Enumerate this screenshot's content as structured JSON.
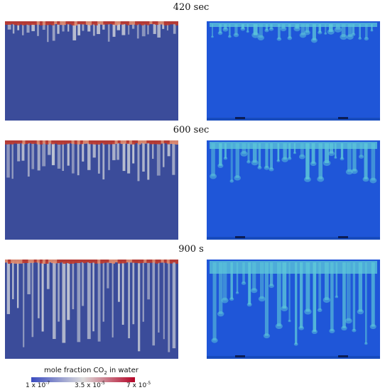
{
  "stages": [
    {
      "label": "420 sec",
      "level": 0.15
    },
    {
      "label": "600 sec",
      "level": 0.35
    },
    {
      "label": "900 s",
      "level": 0.75
    }
  ],
  "colorbar": {
    "title_main": "mole fraction CO",
    "title_sub": "2",
    "title_end": " in water",
    "ticks": [
      {
        "mant": "1 x 10",
        "exp": "-7"
      },
      {
        "mant": "3.5 x 10",
        "exp": "-5"
      },
      {
        "mant": "7 x 10",
        "exp": "-5"
      }
    ],
    "colors": [
      "#3b4cc0",
      "#dddcdc",
      "#b40426"
    ]
  },
  "sim_colors": {
    "background": "#3b4c9a",
    "finger": "#c8ccd6",
    "top": "#c0392b"
  },
  "photo_colors": {
    "background": "#1f56d8",
    "plume": "#5ec9d9"
  }
}
